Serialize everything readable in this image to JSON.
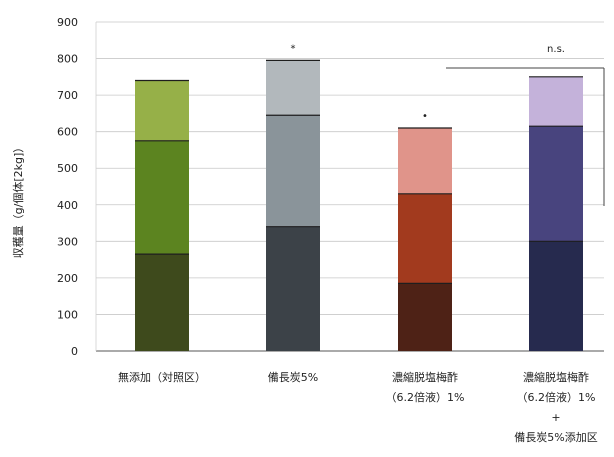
{
  "chart_data": {
    "type": "bar",
    "stacked": true,
    "ylabel": "収穫量（g/個体[2kg]）",
    "ylim": [
      0,
      900
    ],
    "yticks": [
      0,
      100,
      200,
      300,
      400,
      500,
      600,
      700,
      800,
      900
    ],
    "grid": true,
    "categories": [
      {
        "lines": [
          "無添加（対照区）"
        ]
      },
      {
        "lines": [
          "備長炭5%"
        ]
      },
      {
        "lines": [
          "濃縮脱塩梅酢",
          "（6.2倍液）1%"
        ]
      },
      {
        "lines": [
          "濃縮脱塩梅酢",
          "（6.2倍液）1%",
          "+",
          "備長炭5%添加区"
        ]
      }
    ],
    "stack_totals": [
      [
        265,
        575,
        740
      ],
      [
        340,
        645,
        795
      ],
      [
        185,
        430,
        610
      ],
      [
        300,
        615,
        750
      ]
    ],
    "colors": [
      [
        "#3e4a1c",
        "#5c8420",
        "#96b048"
      ],
      [
        "#3c4248",
        "#8a949a",
        "#b2b8bc"
      ],
      [
        "#4e2216",
        "#a23a1e",
        "#e0948a"
      ],
      [
        "#262a4e",
        "#48447e",
        "#c4b2da"
      ]
    ],
    "bar_annotations": [
      "",
      "*",
      "•",
      ""
    ],
    "bracket_label": "n.s."
  }
}
